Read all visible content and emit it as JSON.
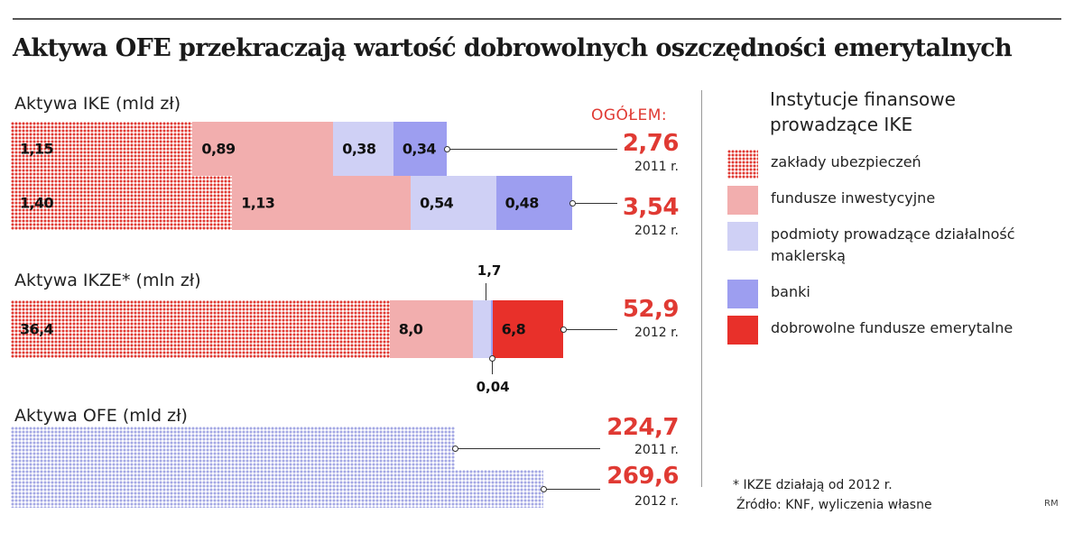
{
  "title": "Aktywa OFE przekraczają wartość dobrowolnych oszczędności emerytalnych",
  "total_header": "OGÓŁEM:",
  "colors": {
    "zaklady": "#e03a33",
    "fundusze": "#f2aeae",
    "podmioty": "#cfd0f5",
    "banki": "#9d9ef0",
    "dfe": "#e8302a",
    "ofe": "#a4a8e4"
  },
  "legend": {
    "title": "Instytucje finansowe prowadzące IKE",
    "items": [
      {
        "key": "zaklady",
        "label": "zakłady ubezpieczeń"
      },
      {
        "key": "fundusze",
        "label": "fundusze inwestycyjne"
      },
      {
        "key": "podmioty",
        "label": "podmioty prowadzące działalność maklerską"
      },
      {
        "key": "banki",
        "label": "banki"
      },
      {
        "key": "dfe",
        "label": "dobrowolne fundusze emerytalne"
      }
    ]
  },
  "chart_data": [
    {
      "type": "bar",
      "orientation": "horizontal",
      "stacked": true,
      "title": "Aktywa IKE (mld zł)",
      "categories": [
        "2011 r.",
        "2012 r."
      ],
      "series": [
        {
          "name": "zakłady ubezpieczeń",
          "key": "zaklady",
          "values": [
            1.15,
            1.4
          ],
          "labels": [
            "1,15",
            "1,40"
          ]
        },
        {
          "name": "fundusze inwestycyjne",
          "key": "fundusze",
          "values": [
            0.89,
            1.13
          ],
          "labels": [
            "0,89",
            "1,13"
          ]
        },
        {
          "name": "podmioty prowadzące działalność maklerską",
          "key": "podmioty",
          "values": [
            0.38,
            0.54
          ],
          "labels": [
            "0,38",
            "0,54"
          ]
        },
        {
          "name": "banki",
          "key": "banki",
          "values": [
            0.34,
            0.48
          ],
          "labels": [
            "0,34",
            "0,48"
          ]
        }
      ],
      "totals": [
        2.76,
        3.54
      ],
      "total_labels": [
        "2,76",
        "3,54"
      ]
    },
    {
      "type": "bar",
      "orientation": "horizontal",
      "stacked": true,
      "title": "Aktywa IKZE* (mln zł)",
      "categories": [
        "2012 r."
      ],
      "series": [
        {
          "name": "zakłady ubezpieczeń",
          "key": "zaklady",
          "values": [
            36.4
          ],
          "labels": [
            "36,4"
          ]
        },
        {
          "name": "fundusze inwestycyjne",
          "key": "fundusze",
          "values": [
            8.0
          ],
          "labels": [
            "8,0"
          ]
        },
        {
          "name": "podmioty prowadzące działalność maklerską",
          "key": "podmioty",
          "values": [
            1.7
          ],
          "labels": [
            "1,7"
          ]
        },
        {
          "name": "banki",
          "key": "banki",
          "values": [
            0.04
          ],
          "labels": [
            "0,04"
          ]
        },
        {
          "name": "dobrowolne fundusze emerytalne",
          "key": "dfe",
          "values": [
            6.8
          ],
          "labels": [
            "6,8"
          ]
        }
      ],
      "totals": [
        52.9
      ],
      "total_labels": [
        "52,9"
      ]
    },
    {
      "type": "bar",
      "orientation": "horizontal",
      "title": "Aktywa OFE (mld zł)",
      "categories": [
        "2011 r.",
        "2012 r."
      ],
      "series": [
        {
          "name": "OFE",
          "key": "ofe",
          "values": [
            224.7,
            269.6
          ]
        }
      ],
      "totals": [
        224.7,
        269.6
      ],
      "total_labels": [
        "224,7",
        "269,6"
      ]
    }
  ],
  "footnote": {
    "line1": "* IKZE działają od 2012 r.",
    "line2": "Źródło: KNF, wyliczenia własne"
  },
  "credit": "RM"
}
